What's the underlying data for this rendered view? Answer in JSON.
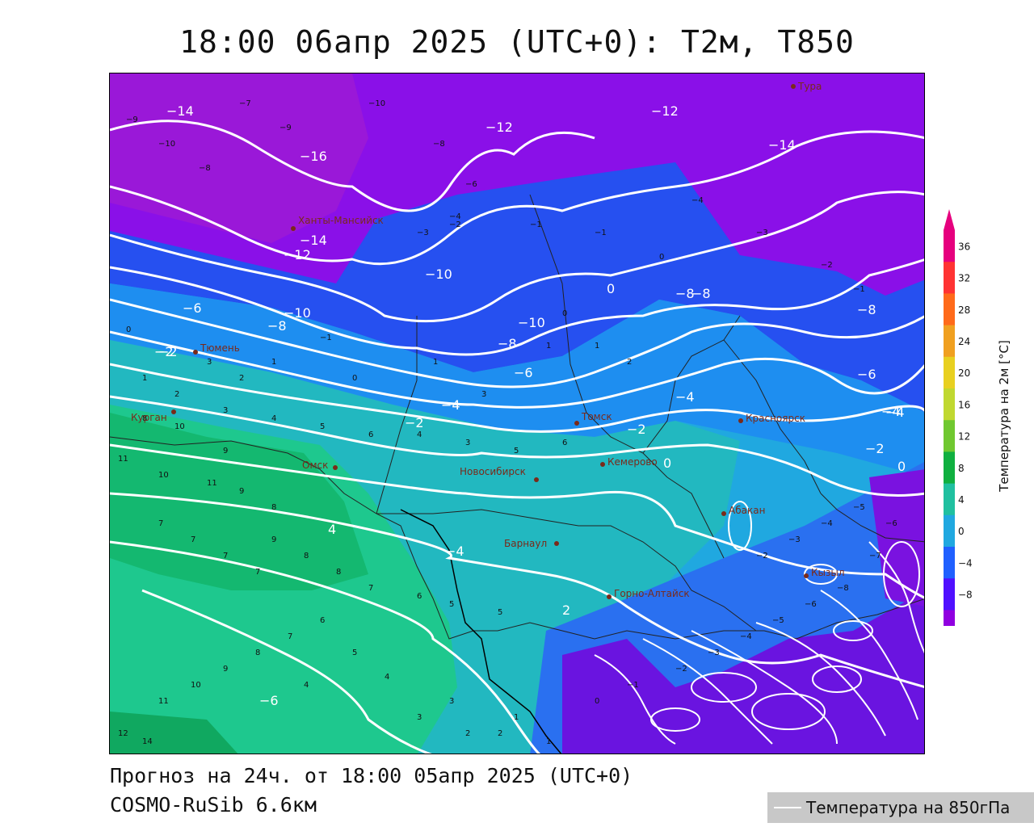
{
  "title": "18:00 06апр 2025 (UTC+0): T2м, T850",
  "forecast_line": "Прогноз на 24ч. от 18:00 05апр 2025 (UTC+0)",
  "model_line": "COSMO-RuSib 6.6км",
  "legend_850": "Температура на 850гПа",
  "colorbar": {
    "title": "Температура на 2м [°C]",
    "ticks": [
      "36",
      "32",
      "28",
      "24",
      "20",
      "16",
      "12",
      "8",
      "4",
      "0",
      "−4",
      "−8"
    ],
    "bands": [
      "#e6007e",
      "#ff3333",
      "#ff6a1a",
      "#f0a020",
      "#e8d020",
      "#c0d830",
      "#70c830",
      "#10b040",
      "#20c0a0",
      "#20a8e0",
      "#2060ff",
      "#5010ff",
      "#9000e0"
    ]
  },
  "cities": [
    {
      "name": "Тура"
    },
    {
      "name": "Ханты-Мансийск"
    },
    {
      "name": "Тюмень"
    },
    {
      "name": "Курган"
    },
    {
      "name": "Омск"
    },
    {
      "name": "Новосибирск"
    },
    {
      "name": "Томск"
    },
    {
      "name": "Кемерово"
    },
    {
      "name": "Красноярск"
    },
    {
      "name": "Абакан"
    },
    {
      "name": "Барнаул"
    },
    {
      "name": "Горно-Алтайск"
    },
    {
      "name": "Кызыл"
    }
  ],
  "isotherms": [
    {
      "text": "−14"
    },
    {
      "text": "−16"
    },
    {
      "text": "−12"
    },
    {
      "text": "−12"
    },
    {
      "text": "−14"
    },
    {
      "text": "−12"
    },
    {
      "text": "−14"
    },
    {
      "text": "−10"
    },
    {
      "text": "−8"
    },
    {
      "text": "−6"
    },
    {
      "text": "−10"
    },
    {
      "text": "−8"
    },
    {
      "text": "−10"
    },
    {
      "text": "−8"
    },
    {
      "text": "−6"
    },
    {
      "text": "−4"
    },
    {
      "text": "−2"
    },
    {
      "text": "−4"
    },
    {
      "text": "−2"
    },
    {
      "text": "0"
    },
    {
      "text": "−2"
    },
    {
      "text": "−4"
    },
    {
      "text": "−6"
    },
    {
      "text": "−8"
    },
    {
      "text": "−4"
    },
    {
      "text": "−2"
    },
    {
      "text": "0"
    },
    {
      "text": "2"
    },
    {
      "text": "4"
    },
    {
      "text": "−6"
    },
    {
      "text": "−4"
    },
    {
      "text": "−2"
    },
    {
      "text": "0"
    },
    {
      "text": "−8"
    }
  ],
  "t2m_values": [
    "−9",
    "−10",
    "−8",
    "−7",
    "−9",
    "−10",
    "−8",
    "−6",
    "−4",
    "−3",
    "−2",
    "−1",
    "−1",
    "0",
    "−4",
    "−3",
    "−2",
    "−1",
    "0",
    "1",
    "1",
    "2",
    "3",
    "1",
    "0",
    "−1",
    "1",
    "2",
    "3",
    "2",
    "1",
    "0",
    "3",
    "4",
    "5",
    "6",
    "4",
    "3",
    "5",
    "6",
    "8",
    "9",
    "10",
    "11",
    "10",
    "11",
    "9",
    "8",
    "7",
    "7",
    "7",
    "7",
    "8",
    "9",
    "8",
    "7",
    "6",
    "5",
    "5",
    "4",
    "3",
    "2",
    "1",
    "0",
    "−1",
    "−2",
    "−3",
    "−4",
    "−5",
    "−6",
    "−8",
    "−7",
    "−6",
    "−5",
    "−4",
    "−3",
    "−2",
    "12",
    "14",
    "11",
    "10",
    "9",
    "8",
    "7",
    "6",
    "5",
    "4",
    "3",
    "2",
    "1"
  ]
}
